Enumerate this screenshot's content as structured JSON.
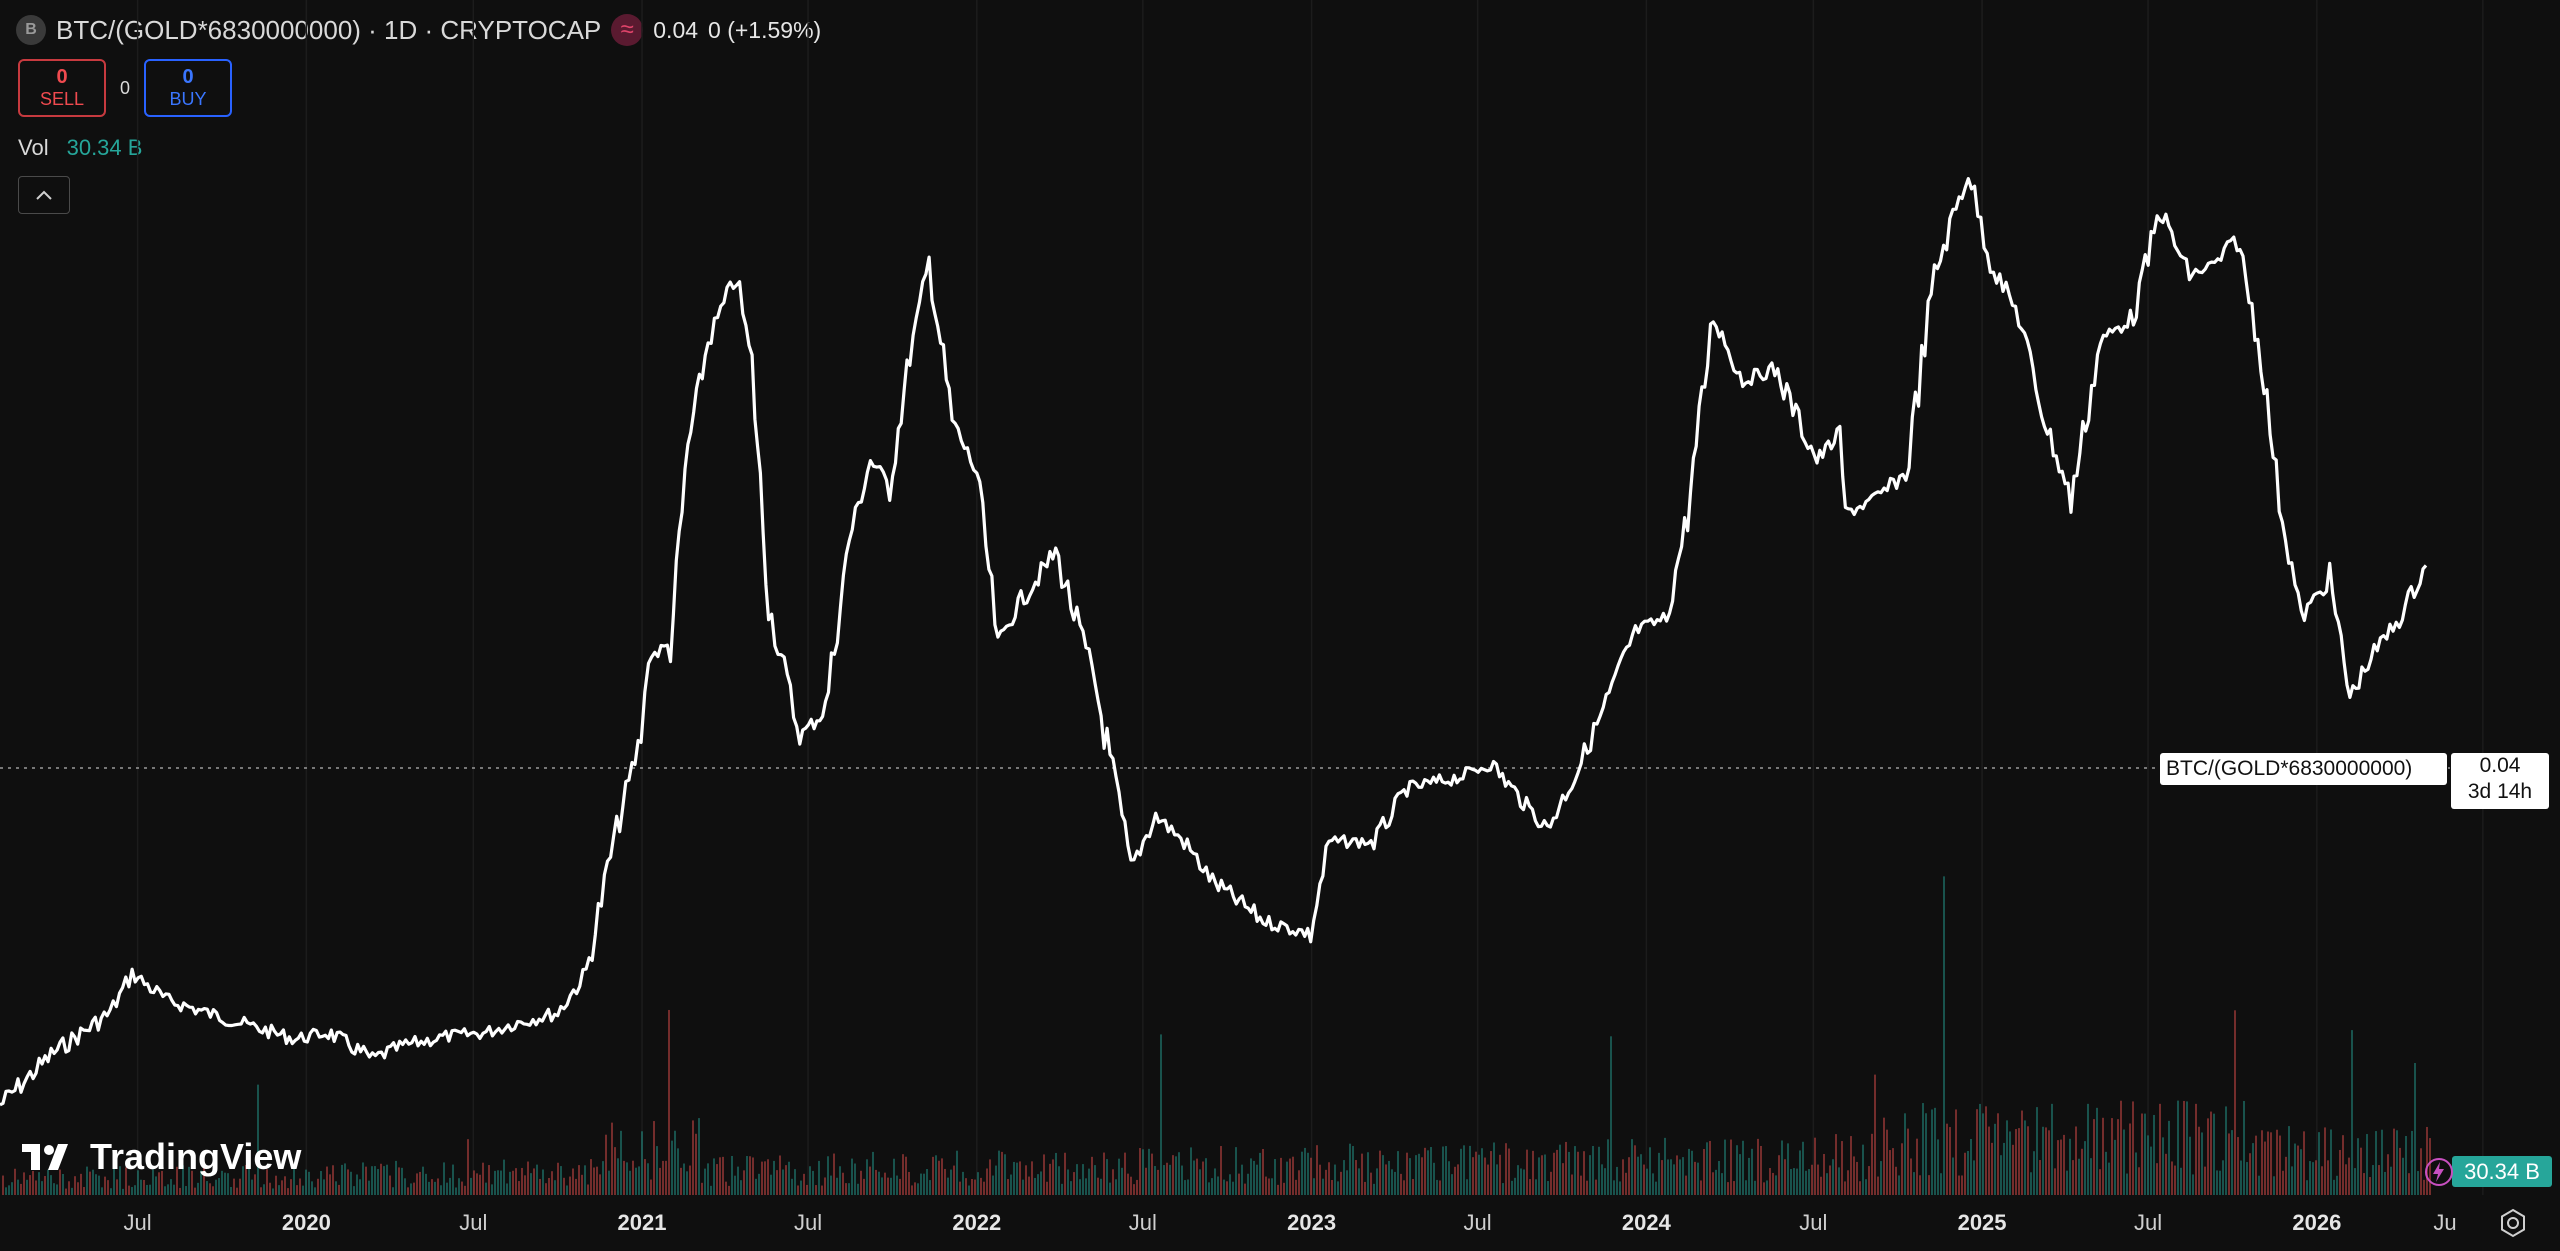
{
  "header": {
    "symbol_icon": "B",
    "title": "BTC/(GOLD*6830000000) · 1D · CRYPTOCAP",
    "indicator_icon": "≈",
    "value": "0.04",
    "change": "0 (+1.59%)"
  },
  "trade": {
    "sell_count": "0",
    "sell_label": "SELL",
    "spread": "0",
    "buy_count": "0",
    "buy_label": "BUY"
  },
  "volume": {
    "label": "Vol",
    "value": "30.34 B"
  },
  "price_label": {
    "series": "BTC/(GOLD*6830000000)",
    "value": "0.04",
    "countdown": "3d 14h"
  },
  "volume_label": "30.34 B",
  "logo": "TradingView",
  "colors": {
    "background": "#0f0f0f",
    "line": "#ffffff",
    "volume_up": "#26a69a",
    "volume_down": "#ef5350",
    "sell": "#f04a4f",
    "buy": "#3a76ff"
  },
  "chart_data": {
    "type": "line",
    "x_ticks": [
      "Jul",
      "2020",
      "Jul",
      "2021",
      "Jul",
      "2022",
      "Jul",
      "2023",
      "Jul",
      "2024",
      "Jul",
      "2025",
      "Jul",
      "2026",
      "Ju"
    ],
    "series": [
      {
        "x": [
          "2019-02-01",
          "2019-04-01",
          "2019-06-01",
          "2019-06-25",
          "2019-08-01",
          "2019-09-15",
          "2019-11-01",
          "2019-12-20",
          "2020-01-25",
          "2020-03-13",
          "2020-04-15",
          "2020-06-01",
          "2020-07-15",
          "2020-08-15",
          "2020-10-01",
          "2020-11-01",
          "2020-12-01",
          "2020-12-31",
          "2021-01-08",
          "2021-02-01",
          "2021-02-20",
          "2021-03-14",
          "2021-04-14",
          "2021-05-01",
          "2021-05-19",
          "2021-06-22",
          "2021-07-20",
          "2021-08-15",
          "2021-09-07",
          "2021-09-28",
          "2021-10-20",
          "2021-11-10",
          "2021-12-05",
          "2022-01-01",
          "2022-01-24",
          "2022-02-15",
          "2022-03-28",
          "2022-05-10",
          "2022-06-18",
          "2022-07-15",
          "2022-08-15",
          "2022-09-15",
          "2022-11-09",
          "2022-12-31",
          "2023-01-20",
          "2023-03-10",
          "2023-04-15",
          "2023-06-15",
          "2023-07-15",
          "2023-08-20",
          "2023-09-15",
          "2023-10-15",
          "2023-11-15",
          "2023-12-20",
          "2024-01-23",
          "2024-02-15",
          "2024-03-14",
          "2024-04-15",
          "2024-05-20",
          "2024-07-05",
          "2024-07-30",
          "2024-08-05",
          "2024-09-06",
          "2024-10-10",
          "2024-11-10",
          "2024-12-17",
          "2025-01-10",
          "2025-02-10",
          "2025-03-10",
          "2025-04-08",
          "2025-05-10",
          "2025-06-15",
          "2025-07-14",
          "2025-08-15",
          "2025-09-15",
          "2025-10-06",
          "2025-11-01",
          "2025-11-21",
          "2025-12-15",
          "2026-01-15",
          "2026-02-06",
          "2026-03-01",
          "2026-04-01",
          "2026-04-30"
        ],
        "y": [
          0.0,
          0.004,
          0.007,
          0.01,
          0.008,
          0.007,
          0.006,
          0.005,
          0.0055,
          0.0035,
          0.0045,
          0.0052,
          0.0055,
          0.0062,
          0.007,
          0.01,
          0.02,
          0.028,
          0.034,
          0.035,
          0.05,
          0.058,
          0.063,
          0.056,
          0.038,
          0.028,
          0.03,
          0.043,
          0.049,
          0.047,
          0.057,
          0.064,
          0.052,
          0.048,
          0.035,
          0.038,
          0.042,
          0.032,
          0.018,
          0.022,
          0.02,
          0.017,
          0.014,
          0.013,
          0.02,
          0.02,
          0.024,
          0.025,
          0.026,
          0.023,
          0.021,
          0.025,
          0.03,
          0.036,
          0.037,
          0.045,
          0.06,
          0.055,
          0.056,
          0.049,
          0.051,
          0.045,
          0.046,
          0.048,
          0.063,
          0.071,
          0.064,
          0.06,
          0.052,
          0.046,
          0.058,
          0.06,
          0.068,
          0.063,
          0.064,
          0.066,
          0.057,
          0.046,
          0.037,
          0.04,
          0.031,
          0.034,
          0.037,
          0.041
        ]
      }
    ],
    "volume_note": "volume histogram at bottom",
    "last_value": 0.04,
    "ylim": [
      0.0,
      0.075
    ]
  }
}
